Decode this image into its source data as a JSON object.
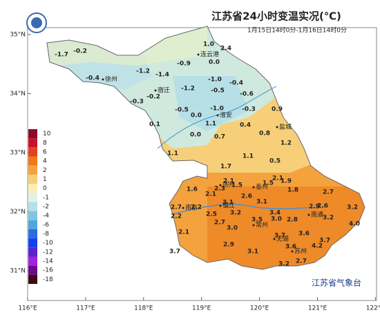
{
  "title": "江苏省24小时变温实况(℃)",
  "subtitle": "1月15日14时0分-1月16日14时0分",
  "source": "江苏省气象台",
  "xticks": [
    {
      "value": 116,
      "label": "116°E"
    },
    {
      "value": 117,
      "label": "117°E"
    },
    {
      "value": 118,
      "label": "118°E"
    },
    {
      "value": 119,
      "label": "119°E"
    },
    {
      "value": 120,
      "label": "120°E"
    },
    {
      "value": 121,
      "label": "121°E"
    },
    {
      "value": 122,
      "label": "122°E"
    }
  ],
  "yticks": [
    {
      "value": 35,
      "label": "35°N"
    },
    {
      "value": 34,
      "label": "34°N"
    },
    {
      "value": 33,
      "label": "33°N"
    },
    {
      "value": 32,
      "label": "32°N"
    },
    {
      "value": 31,
      "label": "31°N"
    }
  ],
  "legend": {
    "labels": [
      10,
      8,
      6,
      4,
      2,
      1,
      0,
      -1,
      -2,
      -4,
      -6,
      -8,
      -10,
      -12,
      -14,
      -16,
      -18
    ],
    "colors": [
      "#8b0a28",
      "#c8102e",
      "#e2421c",
      "#ef7a1a",
      "#f4a23e",
      "#f7cf78",
      "#fbedb4",
      "#dff2e4",
      "#b6e0e6",
      "#80c6e0",
      "#4fa6df",
      "#2a6ee0",
      "#1340ee",
      "#5a22d0",
      "#a022de",
      "#6c0a8a",
      "#3e0a12"
    ]
  },
  "cities": [
    "徐州",
    "连云港",
    "宿迁",
    "淮安",
    "盐城",
    "扬州",
    "泰州",
    "南京",
    "镇江",
    "常州",
    "无锡",
    "苏州",
    "南通"
  ],
  "stations": {
    "values": [
      -1.7,
      -0.2,
      1.0,
      2.4,
      0.0,
      -0.9,
      -1.2,
      -1.4,
      -0.4,
      -1.0,
      -0.4,
      -1.2,
      -0.5,
      -0.6,
      -0.2,
      -0.3,
      -0.3,
      -1.0,
      0.9,
      -0.5,
      0.0,
      1.1,
      0.4,
      0.1,
      0.0,
      0.8,
      0.7,
      1.2,
      1.1,
      1.1,
      0.5,
      1.7,
      2.1,
      1.5,
      1.9,
      2.1,
      2.3,
      1.5,
      1.6,
      1.8,
      2.7,
      2.1,
      2.6,
      3.1,
      3.1,
      2.7,
      2.2,
      2.9,
      2.6,
      3.2,
      3.4,
      3.2,
      2.5,
      3.0,
      3.2,
      2.7,
      3.5,
      2.8,
      4.0,
      2.1,
      3.0,
      3.7,
      3.6,
      3.7,
      4.2,
      2.9,
      3.6,
      3.7,
      3.1,
      3.2,
      2.7,
      2.2
    ],
    "value_labels": [
      "-1.7",
      "-0.2",
      "1.0",
      "2.4",
      "0.0",
      "-0.9",
      "-1.2",
      "-1.4",
      "-0.4",
      "-1.0",
      "-0.4",
      "-1.2",
      "-0.5",
      "-0.6",
      "-0.2",
      "-0.3",
      "-0.3",
      "-1.0",
      "0.9",
      "-0.5",
      "0.0",
      "1.1",
      "0.4",
      "0.1",
      "0.0",
      "0.8",
      "0.7",
      "1.2",
      "1.1",
      "1.1",
      "0.5",
      "1.7",
      "2.1",
      "1.5",
      "1.9",
      "2.1",
      "2.3",
      "1.5",
      "1.6",
      "1.8",
      "2.7",
      "2.1",
      "2.6",
      "3.1",
      "3.1",
      "2.7",
      "2.2",
      "2.9",
      "2.6",
      "3.2",
      "3.4",
      "3.2",
      "2.5",
      "3.0",
      "3.2",
      "2.7",
      "3.5",
      "2.8",
      "4.0",
      "2.1",
      "3.0",
      "3.7",
      "3.6",
      "3.7",
      "4.2",
      "2.9",
      "3.6",
      "3.7",
      "3.1",
      "3.2",
      "2.7",
      "2.2"
    ]
  }
}
